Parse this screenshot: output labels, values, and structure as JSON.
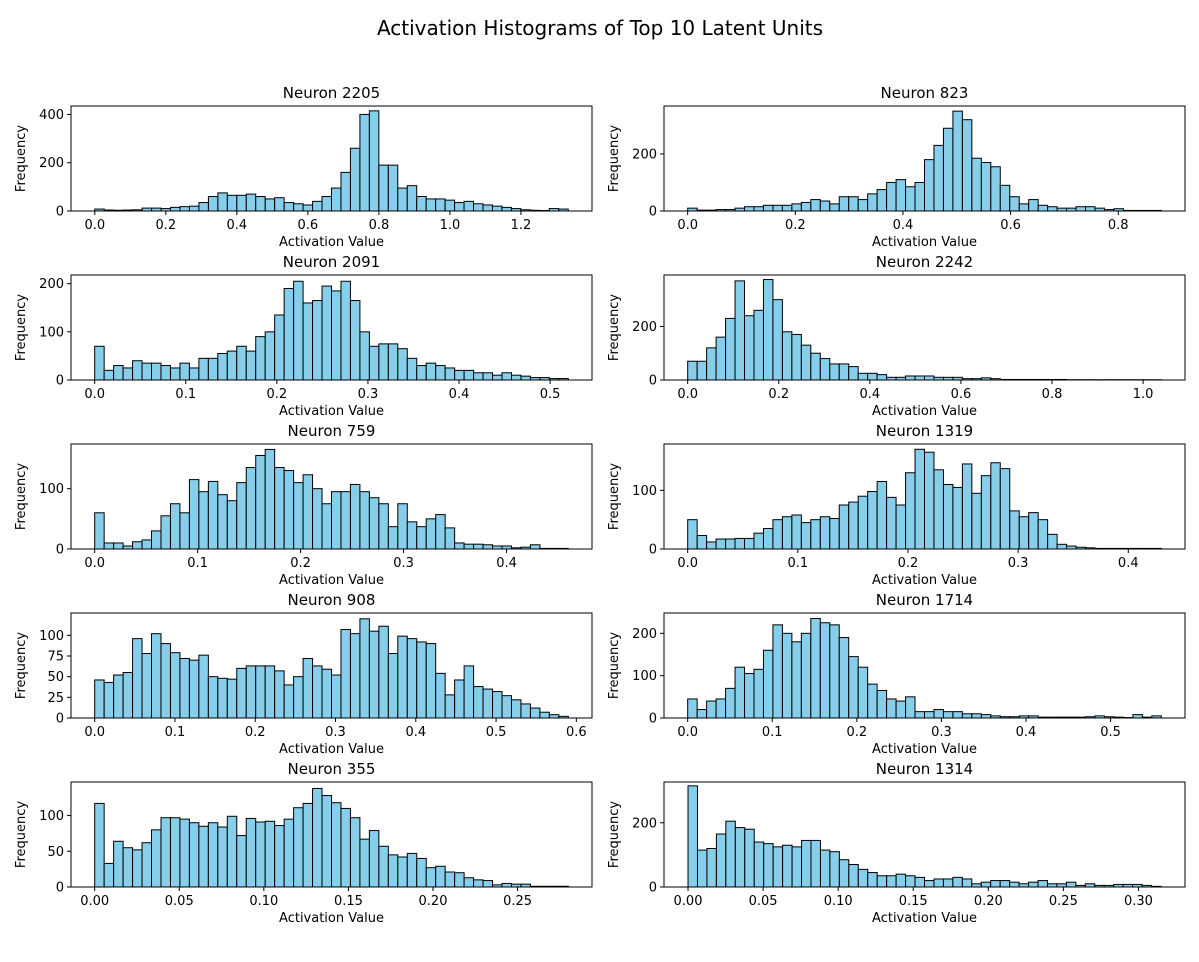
{
  "figure": {
    "title": "Activation Histograms of Top 10 Latent Units"
  },
  "style": {
    "bar_fill": "#87ceeb",
    "bar_edge": "#000000"
  },
  "chart_data": [
    {
      "type": "bar",
      "title": "Neuron 2205",
      "xlabel": "Activation Value",
      "ylabel": "Frequency",
      "grid": false,
      "xlim": [
        -0.067,
        1.4
      ],
      "ylim": [
        0,
        435
      ],
      "xticks": [
        0.0,
        0.2,
        0.4,
        0.6,
        0.8,
        1.0,
        1.2
      ],
      "xtick_labels": [
        "0.0",
        "0.2",
        "0.4",
        "0.6",
        "0.8",
        "1.0",
        "1.2"
      ],
      "yticks": [
        0,
        200,
        400
      ],
      "ytick_labels": [
        "0",
        "200",
        "400"
      ],
      "bin_start": 0.0,
      "bin_end": 1.333,
      "values": [
        8,
        4,
        3,
        4,
        5,
        12,
        12,
        10,
        15,
        18,
        20,
        35,
        60,
        75,
        65,
        65,
        70,
        60,
        50,
        55,
        35,
        30,
        25,
        40,
        60,
        95,
        160,
        260,
        400,
        415,
        190,
        190,
        95,
        105,
        60,
        50,
        50,
        45,
        35,
        40,
        30,
        25,
        20,
        15,
        10,
        5,
        3,
        2,
        10,
        8
      ]
    },
    {
      "type": "bar",
      "title": "Neuron 823",
      "xlabel": "Activation Value",
      "ylabel": "Frequency",
      "grid": false,
      "xlim": [
        -0.044,
        0.924
      ],
      "ylim": [
        0,
        368
      ],
      "xticks": [
        0.0,
        0.2,
        0.4,
        0.6,
        0.8
      ],
      "xtick_labels": [
        "0.0",
        "0.2",
        "0.4",
        "0.6",
        "0.8"
      ],
      "yticks": [
        0,
        200
      ],
      "ytick_labels": [
        "0",
        "200"
      ],
      "bin_start": 0.0,
      "bin_end": 0.88,
      "values": [
        10,
        3,
        3,
        5,
        5,
        10,
        15,
        15,
        20,
        20,
        20,
        25,
        30,
        40,
        35,
        25,
        50,
        50,
        40,
        60,
        75,
        100,
        110,
        85,
        100,
        180,
        230,
        290,
        350,
        320,
        185,
        170,
        155,
        90,
        50,
        25,
        40,
        20,
        15,
        10,
        10,
        15,
        15,
        10,
        5,
        8,
        2,
        2,
        2,
        2
      ]
    },
    {
      "type": "bar",
      "title": "Neuron 2091",
      "xlabel": "Activation Value",
      "ylabel": "Frequency",
      "grid": false,
      "xlim": [
        -0.026,
        0.546
      ],
      "ylim": [
        0,
        218
      ],
      "xticks": [
        0.0,
        0.1,
        0.2,
        0.3,
        0.4,
        0.5
      ],
      "xtick_labels": [
        "0.0",
        "0.1",
        "0.2",
        "0.3",
        "0.4",
        "0.5"
      ],
      "yticks": [
        0,
        100,
        200
      ],
      "ytick_labels": [
        "0",
        "100",
        "200"
      ],
      "bin_start": 0.0,
      "bin_end": 0.52,
      "values": [
        70,
        20,
        30,
        25,
        40,
        35,
        35,
        30,
        25,
        35,
        25,
        45,
        45,
        55,
        60,
        70,
        60,
        90,
        100,
        135,
        190,
        205,
        160,
        165,
        195,
        185,
        205,
        165,
        100,
        70,
        75,
        75,
        65,
        45,
        30,
        35,
        30,
        25,
        20,
        20,
        15,
        15,
        10,
        15,
        10,
        8,
        5,
        5,
        3,
        3
      ]
    },
    {
      "type": "bar",
      "title": "Neuron 2242",
      "xlabel": "Activation Value",
      "ylabel": "Frequency",
      "grid": false,
      "xlim": [
        -0.052,
        1.092
      ],
      "ylim": [
        0,
        392
      ],
      "xticks": [
        0.0,
        0.2,
        0.4,
        0.6,
        0.8,
        1.0
      ],
      "xtick_labels": [
        "0.0",
        "0.2",
        "0.4",
        "0.6",
        "0.8",
        "1.0"
      ],
      "yticks": [
        0,
        200
      ],
      "ytick_labels": [
        "0",
        "200"
      ],
      "bin_start": 0.0,
      "bin_end": 1.04,
      "values": [
        70,
        70,
        120,
        160,
        230,
        370,
        240,
        260,
        375,
        300,
        180,
        170,
        130,
        100,
        80,
        60,
        60,
        50,
        25,
        25,
        20,
        10,
        10,
        15,
        15,
        15,
        10,
        10,
        10,
        5,
        5,
        8,
        5,
        2,
        2,
        2,
        2,
        2,
        2,
        2,
        1,
        1,
        1,
        1,
        1,
        1,
        1,
        1,
        1,
        1
      ]
    },
    {
      "type": "bar",
      "title": "Neuron 759",
      "xlabel": "Activation Value",
      "ylabel": "Frequency",
      "grid": false,
      "xlim": [
        -0.023,
        0.483
      ],
      "ylim": [
        0,
        174
      ],
      "xticks": [
        0.0,
        0.1,
        0.2,
        0.3,
        0.4
      ],
      "xtick_labels": [
        "0.0",
        "0.1",
        "0.2",
        "0.3",
        "0.4"
      ],
      "yticks": [
        0,
        100
      ],
      "ytick_labels": [
        "0",
        "100"
      ],
      "bin_start": 0.0,
      "bin_end": 0.46,
      "values": [
        60,
        10,
        10,
        5,
        12,
        15,
        30,
        55,
        75,
        60,
        115,
        95,
        112,
        90,
        80,
        110,
        135,
        155,
        165,
        135,
        130,
        110,
        123,
        100,
        75,
        95,
        95,
        107,
        95,
        85,
        75,
        37,
        75,
        45,
        37,
        50,
        57,
        35,
        10,
        8,
        8,
        7,
        5,
        5,
        2,
        3,
        7,
        1,
        1,
        1
      ]
    },
    {
      "type": "bar",
      "title": "Neuron 1319",
      "xlabel": "Activation Value",
      "ylabel": "Frequency",
      "grid": false,
      "xlim": [
        -0.0215,
        0.4515
      ],
      "ylim": [
        0,
        179
      ],
      "xticks": [
        0.0,
        0.1,
        0.2,
        0.3,
        0.4
      ],
      "xtick_labels": [
        "0.0",
        "0.1",
        "0.2",
        "0.3",
        "0.4"
      ],
      "yticks": [
        0,
        100
      ],
      "ytick_labels": [
        "0",
        "100"
      ],
      "bin_start": 0.0,
      "bin_end": 0.43,
      "values": [
        50,
        23,
        12,
        17,
        17,
        18,
        18,
        27,
        35,
        50,
        55,
        58,
        45,
        50,
        55,
        52,
        75,
        80,
        90,
        98,
        115,
        88,
        75,
        130,
        170,
        165,
        135,
        110,
        105,
        145,
        95,
        125,
        147,
        137,
        65,
        55,
        62,
        50,
        25,
        8,
        5,
        3,
        2,
        1,
        1,
        1,
        1,
        1,
        1,
        1
      ]
    },
    {
      "type": "bar",
      "title": "Neuron 908",
      "xlabel": "Activation Value",
      "ylabel": "Frequency",
      "grid": false,
      "xlim": [
        -0.0295,
        0.6195
      ],
      "ylim": [
        0,
        127
      ],
      "xticks": [
        0.0,
        0.1,
        0.2,
        0.3,
        0.4,
        0.5,
        0.6
      ],
      "xtick_labels": [
        "0.0",
        "0.1",
        "0.2",
        "0.3",
        "0.4",
        "0.5",
        "0.6"
      ],
      "yticks": [
        0,
        25,
        50,
        75,
        100
      ],
      "ytick_labels": [
        "0",
        "25",
        "50",
        "75",
        "100"
      ],
      "bin_start": 0.0,
      "bin_end": 0.59,
      "values": [
        46,
        43,
        52,
        55,
        96,
        78,
        102,
        90,
        79,
        72,
        70,
        76,
        50,
        48,
        47,
        60,
        63,
        63,
        63,
        57,
        40,
        50,
        72,
        63,
        59,
        52,
        107,
        102,
        120,
        105,
        111,
        78,
        99,
        96,
        92,
        90,
        54,
        28,
        46,
        63,
        38,
        35,
        32,
        27,
        22,
        17,
        12,
        7,
        4,
        2
      ]
    },
    {
      "type": "bar",
      "title": "Neuron 1714",
      "xlabel": "Activation Value",
      "ylabel": "Frequency",
      "grid": false,
      "xlim": [
        -0.028,
        0.588
      ],
      "ylim": [
        0,
        248
      ],
      "xticks": [
        0.0,
        0.1,
        0.2,
        0.3,
        0.4,
        0.5
      ],
      "xtick_labels": [
        "0.0",
        "0.1",
        "0.2",
        "0.3",
        "0.4",
        "0.5"
      ],
      "yticks": [
        0,
        100,
        200
      ],
      "ytick_labels": [
        "0",
        "100",
        "200"
      ],
      "bin_start": 0.0,
      "bin_end": 0.56,
      "values": [
        45,
        20,
        40,
        45,
        70,
        120,
        105,
        115,
        160,
        220,
        200,
        180,
        200,
        235,
        225,
        220,
        190,
        145,
        120,
        80,
        65,
        45,
        40,
        50,
        15,
        15,
        20,
        15,
        15,
        10,
        10,
        8,
        5,
        3,
        3,
        5,
        5,
        2,
        2,
        2,
        2,
        2,
        3,
        5,
        3,
        2,
        1,
        8,
        2,
        5
      ]
    },
    {
      "type": "bar",
      "title": "Neuron 355",
      "xlabel": "Activation Value",
      "ylabel": "Frequency",
      "grid": false,
      "xlim": [
        -0.014,
        0.294
      ],
      "ylim": [
        0,
        147
      ],
      "xticks": [
        0.0,
        0.05,
        0.1,
        0.15,
        0.2,
        0.25
      ],
      "xtick_labels": [
        "0.00",
        "0.05",
        "0.10",
        "0.15",
        "0.20",
        "0.25"
      ],
      "yticks": [
        0,
        50,
        100
      ],
      "ytick_labels": [
        "0",
        "50",
        "100"
      ],
      "bin_start": 0.0,
      "bin_end": 0.28,
      "values": [
        117,
        33,
        64,
        55,
        52,
        62,
        80,
        97,
        97,
        95,
        90,
        85,
        90,
        84,
        99,
        72,
        96,
        91,
        92,
        86,
        95,
        111,
        117,
        138,
        128,
        118,
        110,
        97,
        67,
        79,
        57,
        45,
        42,
        47,
        40,
        27,
        29,
        21,
        20,
        13,
        10,
        9,
        3,
        5,
        4,
        4,
        1,
        1,
        1,
        1
      ]
    },
    {
      "type": "bar",
      "title": "Neuron 1314",
      "xlabel": "Activation Value",
      "ylabel": "Frequency",
      "grid": false,
      "xlim": [
        -0.016,
        0.331
      ],
      "ylim": [
        0,
        327
      ],
      "xticks": [
        0.0,
        0.05,
        0.1,
        0.15,
        0.2,
        0.25,
        0.3
      ],
      "xtick_labels": [
        "0.00",
        "0.05",
        "0.10",
        "0.15",
        "0.20",
        "0.25",
        "0.30"
      ],
      "yticks": [
        0,
        200
      ],
      "ytick_labels": [
        "0",
        "200"
      ],
      "bin_start": 0.0,
      "bin_end": 0.315,
      "values": [
        315,
        115,
        120,
        165,
        205,
        185,
        180,
        140,
        135,
        125,
        130,
        125,
        145,
        145,
        115,
        110,
        85,
        70,
        55,
        45,
        35,
        35,
        40,
        35,
        30,
        20,
        25,
        25,
        30,
        25,
        10,
        15,
        20,
        20,
        15,
        10,
        15,
        20,
        10,
        10,
        15,
        5,
        10,
        5,
        5,
        8,
        8,
        8,
        5,
        2
      ]
    }
  ]
}
